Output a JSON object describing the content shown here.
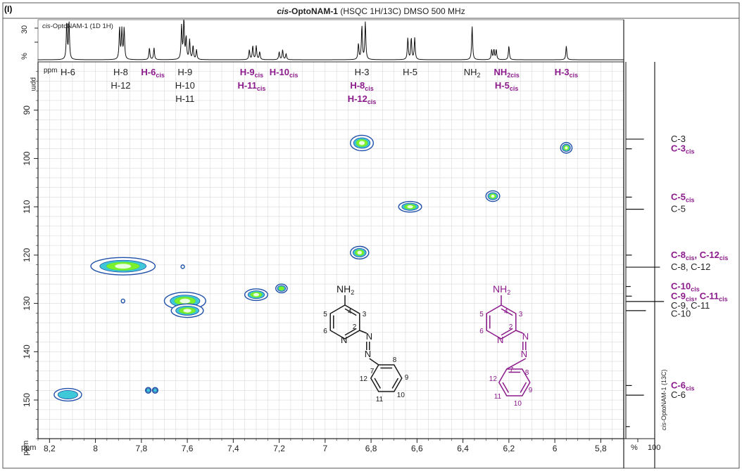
{
  "panel_letter": "(I)",
  "title": {
    "prefix_italic": "cis",
    "main": "-OptoNAM-1",
    "rest": " (HSQC 1H/13C) DMSO 500 MHz"
  },
  "top_trace_label": {
    "prefix_italic": "cis",
    "rest": "-OptoNAM-1 (1D 1H)"
  },
  "right_trace_label": {
    "prefix_italic": "cis",
    "rest": "-OptoNAM-1 (13C)"
  },
  "top_axis": {
    "ticks": [
      "30",
      "-",
      "%"
    ]
  },
  "corner_labels": {
    "ppm_top": "ppm",
    "ppm_left": "ppm",
    "ppm_bottom": "ppm",
    "pct_bottom": "%",
    "hundred": "100"
  },
  "colors": {
    "black": "#1a1a1a",
    "purple": "#8b1a8b",
    "contour_outer": "#1f4fa8",
    "contour_mid": "#3ec8d8",
    "contour_inner": "#7cf02a",
    "grid": "#d9d9d9"
  },
  "h_labels": [
    {
      "text": "H-6",
      "sub": "",
      "x": 8.12,
      "row": 0,
      "color": "black"
    },
    {
      "text": "H-8",
      "sub": "",
      "x": 7.89,
      "row": 0,
      "color": "black"
    },
    {
      "text": "H-12",
      "sub": "",
      "x": 7.89,
      "row": 1,
      "color": "black"
    },
    {
      "text": "H-6",
      "sub": "cis",
      "x": 7.75,
      "row": 0,
      "color": "purple"
    },
    {
      "text": "H-9",
      "sub": "",
      "x": 7.61,
      "row": 0,
      "color": "black"
    },
    {
      "text": "H-10",
      "sub": "",
      "x": 7.61,
      "row": 1,
      "color": "black"
    },
    {
      "text": "H-11",
      "sub": "",
      "x": 7.61,
      "row": 2,
      "color": "black"
    },
    {
      "text": "H-9",
      "sub": "cis",
      "x": 7.32,
      "row": 0,
      "color": "purple"
    },
    {
      "text": "H-11",
      "sub": "cis",
      "x": 7.32,
      "row": 1,
      "color": "purple"
    },
    {
      "text": "H-10",
      "sub": "cis",
      "x": 7.18,
      "row": 0,
      "color": "purple"
    },
    {
      "text": "H-3",
      "sub": "",
      "x": 6.84,
      "row": 0,
      "color": "black"
    },
    {
      "text": "H-8",
      "sub": "cis",
      "x": 6.84,
      "row": 1,
      "color": "purple"
    },
    {
      "text": "H-12",
      "sub": "cis",
      "x": 6.84,
      "row": 2,
      "color": "purple"
    },
    {
      "text": "H-5",
      "sub": "",
      "x": 6.63,
      "row": 0,
      "color": "black"
    },
    {
      "text": "NH",
      "sub": "2",
      "x": 6.36,
      "row": 0,
      "color": "black"
    },
    {
      "text": "NH",
      "sub": "2cis",
      "x": 6.21,
      "row": 0,
      "color": "purple"
    },
    {
      "text": "H-5",
      "sub": "cis",
      "x": 6.21,
      "row": 1,
      "color": "purple"
    },
    {
      "text": "H-3",
      "sub": "cis",
      "x": 5.95,
      "row": 0,
      "color": "purple"
    }
  ],
  "c_labels": [
    {
      "text": "C-3",
      "y": 96.0,
      "color": "black",
      "parts": []
    },
    {
      "text": "C-3",
      "sub": "cis",
      "y": 98.0,
      "color": "purple"
    },
    {
      "text": "C-5",
      "sub": "cis",
      "y": 108.0,
      "color": "purple"
    },
    {
      "text": "C-5",
      "sub": "",
      "y": 110.5,
      "color": "black"
    },
    {
      "text": "C-8",
      "sub": "cis",
      "tail": ", C-12",
      "tail_sub": "cis",
      "y": 120.0,
      "color": "purple"
    },
    {
      "text": "C-8, C-12",
      "sub": "",
      "y": 122.5,
      "color": "black"
    },
    {
      "text": "C-10",
      "sub": "cis",
      "y": 126.5,
      "color": "purple"
    },
    {
      "text": "C-9",
      "sub": "cis",
      "tail": ", C-11",
      "tail_sub": "cis",
      "y": 128.5,
      "color": "purple"
    },
    {
      "text": "C-9, C-11",
      "sub": "",
      "y": 130.5,
      "color": "black"
    },
    {
      "text": "C-10",
      "sub": "",
      "y": 132.2,
      "color": "black"
    },
    {
      "text": "C-6",
      "sub": "cis",
      "y": 147.0,
      "color": "purple"
    },
    {
      "text": "C-6",
      "sub": "",
      "y": 149.0,
      "color": "black"
    }
  ],
  "chart_data": {
    "type": "heatmap",
    "xlabel": "ppm",
    "ylabel": "ppm",
    "xlim": [
      8.25,
      5.7
    ],
    "ylim": [
      80,
      158
    ],
    "x_ticks": [
      "8,2",
      "8",
      "7,8",
      "7,6",
      "7,4",
      "7,2",
      "7",
      "6,8",
      "6,6",
      "6,4",
      "6,2",
      "6",
      "5,8"
    ],
    "x_tick_values": [
      8.2,
      8.0,
      7.8,
      7.6,
      7.4,
      7.2,
      7.0,
      6.8,
      6.6,
      6.4,
      6.2,
      6.0,
      5.8
    ],
    "y_ticks": [
      "90",
      "100",
      "110",
      "120",
      "130",
      "140",
      "150"
    ],
    "y_tick_values": [
      90,
      100,
      110,
      120,
      130,
      140,
      150
    ],
    "grid": true,
    "cross_peaks": [
      {
        "h": 8.12,
        "c": 148.9,
        "w": 0.06,
        "hgt": 1.3,
        "level": 1
      },
      {
        "h": 7.88,
        "c": 122.3,
        "w": 0.14,
        "hgt": 1.8,
        "level": 3
      },
      {
        "h": 7.77,
        "c": 148.0,
        "w": 0.012,
        "hgt": 0.6,
        "level": 1
      },
      {
        "h": 7.74,
        "c": 148.0,
        "w": 0.012,
        "hgt": 0.6,
        "level": 1
      },
      {
        "h": 7.61,
        "c": 129.5,
        "w": 0.09,
        "hgt": 1.8,
        "level": 3
      },
      {
        "h": 7.6,
        "c": 131.5,
        "w": 0.07,
        "hgt": 1.4,
        "level": 3
      },
      {
        "h": 7.3,
        "c": 128.2,
        "w": 0.05,
        "hgt": 1.2,
        "level": 3
      },
      {
        "h": 7.19,
        "c": 126.9,
        "w": 0.025,
        "hgt": 0.9,
        "level": 2
      },
      {
        "h": 6.84,
        "c": 96.8,
        "w": 0.05,
        "hgt": 1.6,
        "level": 3
      },
      {
        "h": 6.85,
        "c": 119.5,
        "w": 0.04,
        "hgt": 1.3,
        "level": 3
      },
      {
        "h": 6.63,
        "c": 110.0,
        "w": 0.05,
        "hgt": 1.1,
        "level": 3
      },
      {
        "h": 6.27,
        "c": 107.8,
        "w": 0.03,
        "hgt": 1.1,
        "level": 3
      },
      {
        "h": 5.95,
        "c": 97.8,
        "w": 0.025,
        "hgt": 1.1,
        "level": 3
      },
      {
        "h": 7.88,
        "c": 129.5,
        "w": 0.005,
        "hgt": 0.4,
        "level": 0
      },
      {
        "h": 7.62,
        "c": 122.4,
        "w": 0.006,
        "hgt": 0.3,
        "level": 0
      }
    ],
    "top_trace_peaks": [
      {
        "x": 8.125,
        "h": 0.95
      },
      {
        "x": 8.115,
        "h": 0.95
      },
      {
        "x": 7.895,
        "h": 0.8
      },
      {
        "x": 7.885,
        "h": 0.75
      },
      {
        "x": 7.875,
        "h": 0.8
      },
      {
        "x": 7.765,
        "h": 0.3
      },
      {
        "x": 7.745,
        "h": 0.3
      },
      {
        "x": 7.625,
        "h": 0.85
      },
      {
        "x": 7.615,
        "h": 1.0
      },
      {
        "x": 7.605,
        "h": 0.55
      },
      {
        "x": 7.59,
        "h": 0.5
      },
      {
        "x": 7.575,
        "h": 0.35
      },
      {
        "x": 7.56,
        "h": 0.25
      },
      {
        "x": 7.33,
        "h": 0.25
      },
      {
        "x": 7.315,
        "h": 0.35
      },
      {
        "x": 7.3,
        "h": 0.35
      },
      {
        "x": 7.285,
        "h": 0.2
      },
      {
        "x": 7.2,
        "h": 0.2
      },
      {
        "x": 7.185,
        "h": 0.25
      },
      {
        "x": 7.17,
        "h": 0.15
      },
      {
        "x": 6.855,
        "h": 0.4
      },
      {
        "x": 6.84,
        "h": 0.85
      },
      {
        "x": 6.825,
        "h": 0.95
      },
      {
        "x": 6.64,
        "h": 0.55
      },
      {
        "x": 6.625,
        "h": 0.55
      },
      {
        "x": 6.61,
        "h": 0.55
      },
      {
        "x": 6.36,
        "h": 0.85
      },
      {
        "x": 6.275,
        "h": 0.25
      },
      {
        "x": 6.265,
        "h": 0.25
      },
      {
        "x": 6.255,
        "h": 0.25
      },
      {
        "x": 6.2,
        "h": 0.35
      },
      {
        "x": 5.95,
        "h": 0.35
      }
    ],
    "side_trace_peaks": [
      {
        "c": 96.0,
        "h": 0.45
      },
      {
        "c": 98.0,
        "h": 0.15
      },
      {
        "c": 108.0,
        "h": 0.15
      },
      {
        "c": 110.5,
        "h": 0.45
      },
      {
        "c": 120.0,
        "h": 0.15
      },
      {
        "c": 122.5,
        "h": 0.85
      },
      {
        "c": 126.5,
        "h": 0.12
      },
      {
        "c": 128.5,
        "h": 0.15
      },
      {
        "c": 129.6,
        "h": 0.95
      },
      {
        "c": 131.5,
        "h": 0.5
      },
      {
        "c": 147.0,
        "h": 0.15
      },
      {
        "c": 149.0,
        "h": 0.45
      },
      {
        "c": 155.5,
        "h": 0.1
      }
    ]
  },
  "molecule_labels": {
    "nh2": "NH",
    "nh2_sub": "2",
    "numbers_black": [
      "4",
      "5",
      "3",
      "6",
      "2",
      "N",
      "N",
      "N",
      "8",
      "9",
      "7",
      "10",
      "12",
      "11"
    ],
    "numbers_purple": [
      "4",
      "5",
      "3",
      "6",
      "2",
      "N",
      "N",
      "N",
      "7",
      "12",
      "11",
      "8",
      "10",
      "9"
    ]
  }
}
